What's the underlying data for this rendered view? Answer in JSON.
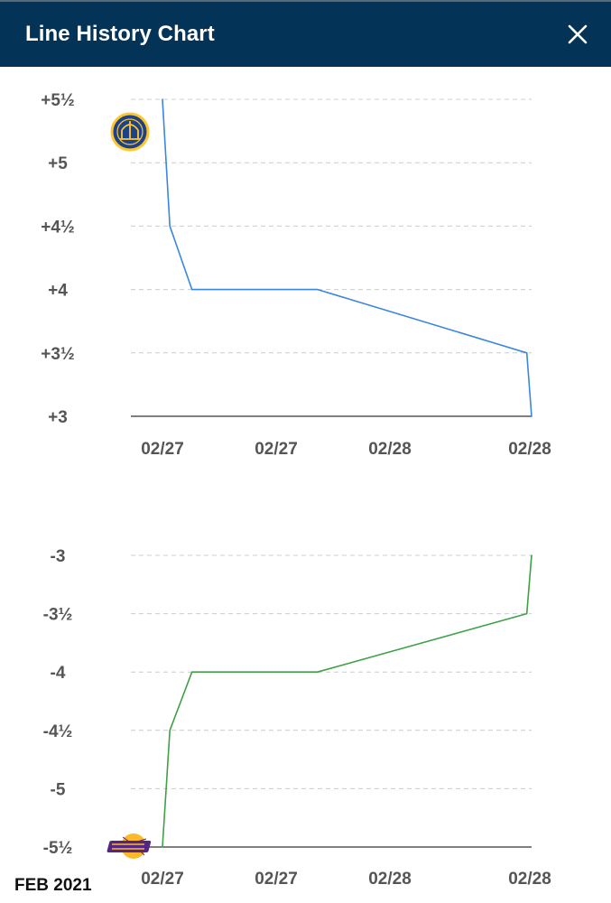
{
  "header": {
    "title": "Line History Chart",
    "close_icon": "close-icon"
  },
  "footer": {
    "date_label": "FEB 2021"
  },
  "colors": {
    "header_bg": "#033457",
    "warriors_line": "#3a86e0",
    "lakers_line": "#3fa046",
    "grid": "#cccccc",
    "axis": "#333333"
  },
  "chart_data": [
    {
      "type": "line",
      "team": "Golden State Warriors",
      "icon": "warriors-logo-icon",
      "x_tick_labels": [
        "02/27",
        "02/27",
        "02/28",
        "02/28"
      ],
      "y_tick_labels": [
        "+5½",
        "+5",
        "+4½",
        "+4",
        "+3½",
        "+3"
      ],
      "y_tick_values": [
        5.5,
        5,
        4.5,
        4,
        3.5,
        3
      ],
      "ylim": [
        3,
        5.5
      ],
      "x": [
        0.0,
        0.02,
        0.08,
        0.42,
        0.987,
        1.0
      ],
      "y": [
        5.5,
        4.5,
        4.0,
        4.0,
        3.5,
        3.0
      ],
      "grid": true
    },
    {
      "type": "line",
      "team": "Los Angeles Lakers",
      "icon": "lakers-logo-icon",
      "x_tick_labels": [
        "02/27",
        "02/27",
        "02/28",
        "02/28"
      ],
      "y_tick_labels": [
        "-3",
        "-3½",
        "-4",
        "-4½",
        "-5",
        "-5½"
      ],
      "y_tick_values": [
        -3,
        -3.5,
        -4,
        -4.5,
        -5,
        -5.5
      ],
      "ylim": [
        -5.5,
        -3
      ],
      "x": [
        0.0,
        0.02,
        0.08,
        0.42,
        0.987,
        1.0
      ],
      "y": [
        -5.5,
        -4.5,
        -4.0,
        -4.0,
        -3.5,
        -3.0
      ],
      "grid": true
    }
  ]
}
